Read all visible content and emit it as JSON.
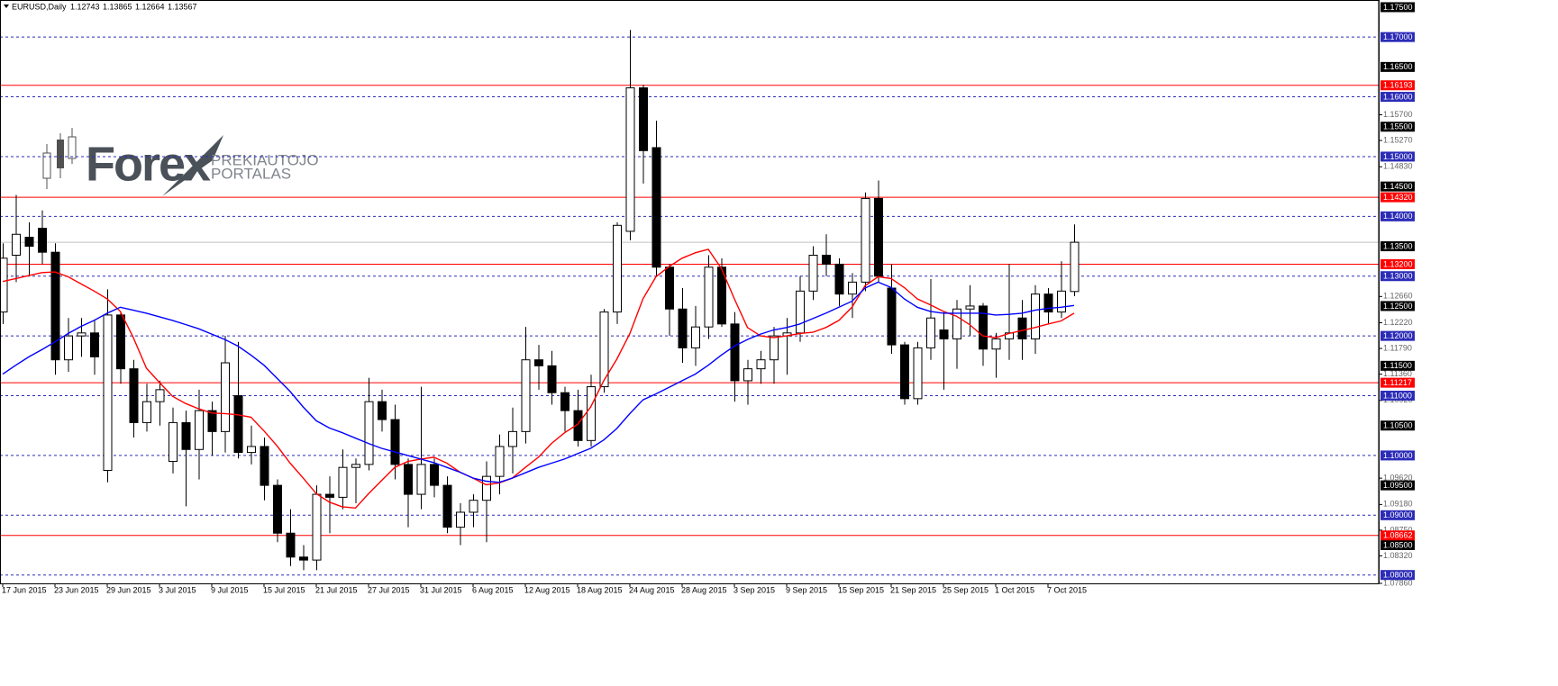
{
  "chart_data": {
    "type": "candlestick",
    "header": {
      "symbol": "EURUSD,Daily"
    },
    "watermark": {
      "brand": "Forex",
      "line1": "PREKIAUTOJO",
      "line2": "PORTALAS"
    },
    "categories": [
      "17 Jun 2015",
      null,
      null,
      null,
      "23 Jun 2015",
      null,
      null,
      null,
      "29 Jun 2015",
      null,
      null,
      null,
      "3 Jul 2015",
      null,
      null,
      null,
      "9 Jul 2015",
      null,
      null,
      null,
      "15 Jul 2015",
      null,
      null,
      null,
      "21 Jul 2015",
      null,
      null,
      null,
      "27 Jul 2015",
      null,
      null,
      null,
      "31 Jul 2015",
      null,
      null,
      null,
      "6 Aug 2015",
      null,
      null,
      null,
      "12 Aug 2015",
      null,
      null,
      null,
      "18 Aug 2015",
      null,
      null,
      null,
      "24 Aug 2015",
      null,
      null,
      null,
      "28 Aug 2015",
      null,
      null,
      null,
      "3 Sep 2015",
      null,
      null,
      null,
      "9 Sep 2015",
      null,
      null,
      null,
      "15 Sep 2015",
      null,
      null,
      null,
      "21 Sep 2015",
      null,
      null,
      null,
      "25 Sep 2015",
      null,
      null,
      null,
      "1 Oct 2015",
      null,
      null,
      null,
      "7 Oct 2015",
      null,
      null
    ],
    "open": [
      1.124,
      1.1335,
      1.1365,
      1.138,
      1.134,
      1.116,
      1.12,
      1.1205,
      1.0975,
      1.1235,
      1.1145,
      1.1055,
      1.109,
      1.099,
      1.1055,
      1.101,
      1.1075,
      1.104,
      1.11,
      1.1005,
      1.1015,
      1.095,
      1.087,
      1.083,
      1.0825,
      1.0935,
      1.093,
      1.098,
      1.0985,
      1.109,
      1.106,
      1.0985,
      1.0935,
      1.0985,
      1.095,
      1.088,
      1.0905,
      1.0925,
      1.0965,
      1.1015,
      1.104,
      1.116,
      1.115,
      1.1105,
      1.1075,
      1.1025,
      1.1115,
      1.124,
      1.1375,
      1.1615,
      1.1515,
      1.1315,
      1.1245,
      1.118,
      1.1215,
      1.1315,
      1.122,
      1.1125,
      1.1145,
      1.116,
      1.12,
      1.1205,
      1.1275,
      1.1335,
      1.132,
      1.127,
      1.129,
      1.143,
      1.128,
      1.1185,
      1.1095,
      1.118,
      1.121,
      1.1195,
      1.1245,
      1.125,
      1.1178,
      1.1195,
      1.123,
      1.1195,
      1.127,
      1.124,
      1.12743
    ],
    "high": [
      1.1355,
      1.1436,
      1.139,
      1.141,
      1.1355,
      1.123,
      1.123,
      1.1225,
      1.1278,
      1.124,
      1.116,
      1.112,
      1.1125,
      1.108,
      1.1075,
      1.111,
      1.109,
      1.12,
      1.119,
      1.105,
      1.103,
      1.096,
      1.091,
      1.085,
      1.095,
      1.0965,
      1.101,
      1.0995,
      1.113,
      1.111,
      1.1085,
      1.0995,
      1.1115,
      1.0995,
      1.0965,
      1.092,
      1.0935,
      1.099,
      1.1035,
      1.108,
      1.1215,
      1.1185,
      1.1175,
      1.1115,
      1.111,
      1.1135,
      1.1245,
      1.139,
      1.1712,
      1.162,
      1.156,
      1.132,
      1.128,
      1.125,
      1.1335,
      1.133,
      1.124,
      1.116,
      1.1175,
      1.1215,
      1.123,
      1.13,
      1.135,
      1.137,
      1.133,
      1.1305,
      1.144,
      1.146,
      1.132,
      1.119,
      1.119,
      1.1295,
      1.124,
      1.126,
      1.1285,
      1.1255,
      1.1205,
      1.132,
      1.126,
      1.1285,
      1.128,
      1.1325,
      1.13865
    ],
    "low": [
      1.122,
      1.129,
      1.13,
      1.132,
      1.1135,
      1.114,
      1.1165,
      1.1135,
      1.0955,
      1.112,
      1.103,
      1.104,
      1.105,
      1.097,
      1.0915,
      1.096,
      1.1,
      1.1005,
      1.0995,
      1.0985,
      1.0925,
      1.0855,
      1.0815,
      1.0808,
      1.0808,
      1.087,
      1.091,
      1.092,
      1.0975,
      1.104,
      1.096,
      1.088,
      1.091,
      1.093,
      1.087,
      1.085,
      1.088,
      1.0855,
      1.0935,
      1.097,
      1.102,
      1.111,
      1.1085,
      1.104,
      1.1015,
      1.1015,
      1.1105,
      1.122,
      1.136,
      1.1455,
      1.13,
      1.12,
      1.1155,
      1.115,
      1.1195,
      1.1215,
      1.109,
      1.1085,
      1.112,
      1.112,
      1.1135,
      1.119,
      1.126,
      1.13,
      1.125,
      1.123,
      1.1275,
      1.129,
      1.117,
      1.1085,
      1.1085,
      1.116,
      1.111,
      1.1145,
      1.12,
      1.115,
      1.113,
      1.116,
      1.116,
      1.117,
      1.122,
      1.123,
      1.12664
    ],
    "close": [
      1.133,
      1.137,
      1.135,
      1.134,
      1.116,
      1.12,
      1.1205,
      1.1165,
      1.1235,
      1.1145,
      1.1055,
      1.109,
      1.111,
      1.1055,
      1.101,
      1.1075,
      1.104,
      1.1155,
      1.1005,
      1.1015,
      1.095,
      1.087,
      1.083,
      1.0825,
      1.0935,
      1.093,
      1.098,
      1.0985,
      1.109,
      1.106,
      1.0985,
      1.0935,
      1.0985,
      1.095,
      1.088,
      1.0905,
      1.0925,
      1.0965,
      1.1015,
      1.104,
      1.116,
      1.115,
      1.1105,
      1.1075,
      1.1025,
      1.1115,
      1.124,
      1.1385,
      1.1615,
      1.151,
      1.1315,
      1.1245,
      1.118,
      1.1215,
      1.1315,
      1.122,
      1.1125,
      1.1145,
      1.116,
      1.12,
      1.1205,
      1.1275,
      1.1335,
      1.132,
      1.127,
      1.129,
      1.143,
      1.13,
      1.1185,
      1.1095,
      1.118,
      1.123,
      1.1195,
      1.1245,
      1.125,
      1.1178,
      1.1195,
      1.1205,
      1.1195,
      1.127,
      1.124,
      1.1275,
      1.13567
    ],
    "lines": [
      {
        "color": "#ff0000",
        "values": [
          1.1291,
          1.1296,
          1.1301,
          1.1306,
          1.1307,
          1.1299,
          1.1287,
          1.1275,
          1.1262,
          1.1241,
          1.1197,
          1.1146,
          1.1122,
          1.1099,
          1.1087,
          1.1078,
          1.1071,
          1.107,
          1.1068,
          1.1064,
          1.1041,
          1.1016,
          1.0987,
          1.0962,
          1.0936,
          1.0922,
          1.0914,
          1.0912,
          1.0936,
          1.0958,
          1.098,
          1.099,
          1.0994,
          1.0997,
          1.0987,
          1.0972,
          1.0962,
          1.0951,
          1.0954,
          1.0962,
          1.098,
          1.0997,
          1.102,
          1.1038,
          1.1052,
          1.1081,
          1.1125,
          1.1161,
          1.1204,
          1.1262,
          1.1299,
          1.1316,
          1.133,
          1.1339,
          1.1345,
          1.1313,
          1.1262,
          1.1214,
          1.12,
          1.1197,
          1.12,
          1.1204,
          1.1206,
          1.1214,
          1.1226,
          1.1248,
          1.1284,
          1.1299,
          1.1296,
          1.1281,
          1.1262,
          1.1252,
          1.1241,
          1.1233,
          1.1219,
          1.12,
          1.1197,
          1.1204,
          1.1209,
          1.1214,
          1.122,
          1.1225,
          1.1238
        ]
      },
      {
        "color": "#0000ff",
        "values": [
          1.1136,
          1.1151,
          1.1165,
          1.1177,
          1.119,
          1.1204,
          1.1216,
          1.1226,
          1.1238,
          1.1248,
          1.1243,
          1.1238,
          1.1232,
          1.1226,
          1.1219,
          1.1212,
          1.1203,
          1.1194,
          1.1183,
          1.1168,
          1.1151,
          1.1129,
          1.1107,
          1.1081,
          1.1058,
          1.1046,
          1.1038,
          1.1029,
          1.102,
          1.1012,
          1.1006,
          1.1,
          1.0994,
          1.0988,
          1.098,
          1.0972,
          1.0962,
          1.0957,
          1.0955,
          1.0962,
          1.0971,
          1.098,
          1.0987,
          1.0994,
          1.1003,
          1.1012,
          1.1026,
          1.1045,
          1.107,
          1.1093,
          1.1103,
          1.1114,
          1.1125,
          1.1136,
          1.1151,
          1.1168,
          1.1183,
          1.1194,
          1.1203,
          1.121,
          1.1214,
          1.122,
          1.1229,
          1.1238,
          1.1248,
          1.1258,
          1.128,
          1.129,
          1.1281,
          1.1262,
          1.1248,
          1.1241,
          1.1238,
          1.1238,
          1.1238,
          1.1238,
          1.1235,
          1.1236,
          1.1238,
          1.1243,
          1.1246,
          1.1248,
          1.1251
        ]
      }
    ],
    "ylim": [
      1.0786,
      1.1762
    ],
    "yticks": [
      {
        "value": 1.157,
        "label": "1.15700"
      },
      {
        "value": 1.1527,
        "label": "1.15270"
      },
      {
        "value": 1.1483,
        "label": "1.14830"
      },
      {
        "value": 1.1266,
        "label": "1.12660"
      },
      {
        "value": 1.1222,
        "label": "1.12220"
      },
      {
        "value": 1.1179,
        "label": "1.11790"
      },
      {
        "value": 1.1136,
        "label": "1.11360"
      },
      {
        "value": 1.1092,
        "label": "1.10920"
      },
      {
        "value": 1.0962,
        "label": "1.09620"
      },
      {
        "value": 1.0918,
        "label": "1.09180"
      },
      {
        "value": 1.0875,
        "label": "1.08750"
      },
      {
        "value": 1.0832,
        "label": "1.08320"
      },
      {
        "value": 1.0786,
        "label": "1.07860"
      }
    ],
    "level_colors": {
      "grid": "#2b2bb8",
      "support": "#ff0000",
      "mark": "#000000",
      "up": "#ffffff",
      "down": "#000000",
      "price": "#c0c0c0"
    },
    "levels": {
      "mark": [
        {
          "value": 1.175,
          "label": "1.17500"
        },
        {
          "value": 1.165,
          "label": "1.16500"
        },
        {
          "value": 1.155,
          "label": "1.15500"
        },
        {
          "value": 1.145,
          "label": "1.14500"
        },
        {
          "value": 1.135,
          "label": "1.13500"
        },
        {
          "value": 1.125,
          "label": "1.12500"
        },
        {
          "value": 1.115,
          "label": "1.11500"
        },
        {
          "value": 1.105,
          "label": "1.10500"
        },
        {
          "value": 1.095,
          "label": "1.09500"
        },
        {
          "value": 1.085,
          "label": "1.08500"
        }
      ],
      "grid": [
        {
          "value": 1.17,
          "label": "1.17000"
        },
        {
          "value": 1.16,
          "label": "1.16000"
        },
        {
          "value": 1.15,
          "label": "1.15000"
        },
        {
          "value": 1.14,
          "label": "1.14000"
        },
        {
          "value": 1.13,
          "label": "1.13000"
        },
        {
          "value": 1.12,
          "label": "1.12000"
        },
        {
          "value": 1.11,
          "label": "1.11000"
        },
        {
          "value": 1.1,
          "label": "1.10000"
        },
        {
          "value": 1.09,
          "label": "1.09000"
        },
        {
          "value": 1.08,
          "label": "1.08000"
        }
      ],
      "support": [
        1.16193,
        {
          "value": 1.1432,
          "label": "1.14320"
        },
        {
          "value": 1.132,
          "label": "1.13200"
        },
        1.11217,
        1.08662
      ]
    }
  }
}
